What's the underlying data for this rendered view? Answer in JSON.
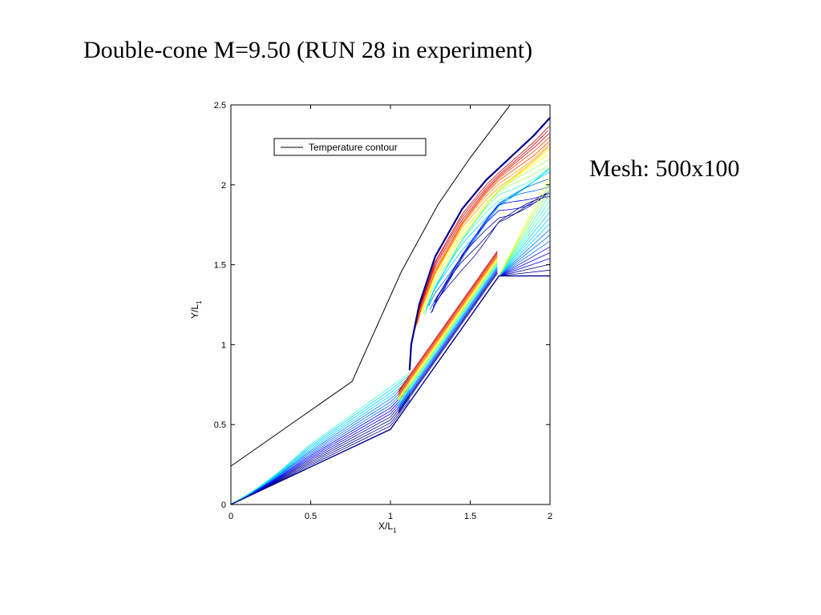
{
  "slide": {
    "title": "Double-cone M=9.50 (RUN 28 in experiment)",
    "mesh_note": "Mesh: 500x100"
  },
  "chart_data": {
    "type": "line",
    "xlabel": "X/L",
    "xlabel_sub": "1",
    "ylabel": "Y/L",
    "ylabel_sub": "1",
    "xlim": [
      0,
      2
    ],
    "ylim": [
      0,
      2.5
    ],
    "xticks": [
      0,
      0.5,
      1,
      1.5,
      2
    ],
    "xtick_labels": [
      "0",
      "0.5",
      "1",
      "1.5",
      "2"
    ],
    "yticks": [
      0,
      0.5,
      1,
      1.5,
      2,
      2.5
    ],
    "ytick_labels": [
      "0",
      "0.5",
      "1",
      "1.5",
      "2",
      "2.5"
    ],
    "grid": false,
    "legend_position": "top-left",
    "series": [
      {
        "name": "Temperature contour",
        "color": "#000000",
        "x": [
          0,
          0.76,
          0.84,
          1.07,
          1.3,
          1.5,
          1.75
        ],
        "y": [
          0.24,
          0.77,
          0.95,
          1.46,
          1.88,
          2.17,
          2.5
        ]
      }
    ],
    "geometry": {
      "x": [
        0,
        1.0,
        1.68,
        2.0
      ],
      "y": [
        0,
        0.47,
        1.43,
        1.43
      ]
    },
    "shock": {
      "x": [
        1.12,
        1.13,
        1.18,
        1.28,
        1.45,
        1.6,
        1.75,
        1.9,
        2.0
      ],
      "y": [
        0.84,
        1.0,
        1.25,
        1.55,
        1.85,
        2.03,
        2.17,
        2.31,
        2.42
      ]
    },
    "contour_colors": [
      "#00008f",
      "#0000ff",
      "#0070ff",
      "#00d0ff",
      "#40ffc0",
      "#a0ff60",
      "#ffff00",
      "#ffa000",
      "#ff4000",
      "#d00000"
    ]
  }
}
